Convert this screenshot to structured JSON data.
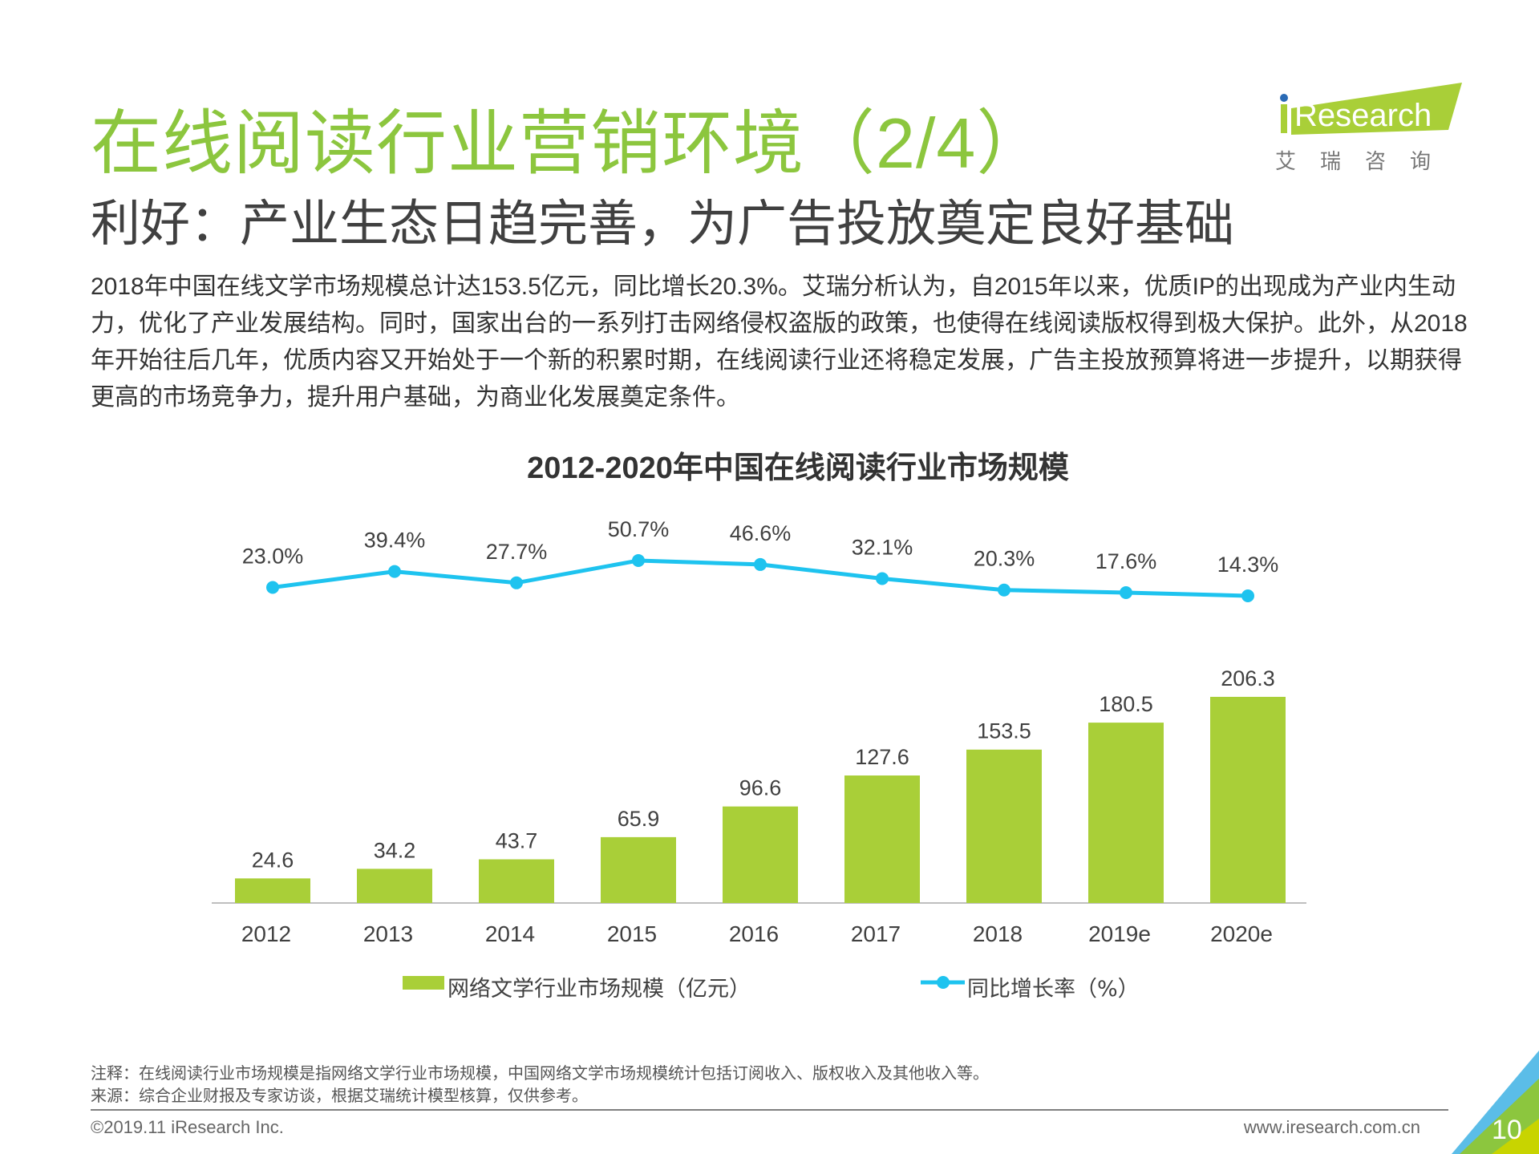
{
  "header": {
    "title": "在线阅读行业营销环境（2/4）",
    "subtitle": "利好：产业生态日趋完善，为广告投放奠定良好基础",
    "logo_text": "iResearch",
    "logo_cn": "艾 瑞 咨 询"
  },
  "body_text": "2018年中国在线文学市场规模总计达153.5亿元，同比增长20.3%。艾瑞分析认为，自2015年以来，优质IP的出现成为产业内生动力，优化了产业发展结构。同时，国家出台的一系列打击网络侵权盗版的政策，也使得在线阅读版权得到极大保护。此外，从2018年开始往后几年，优质内容又开始处于一个新的积累时期，在线阅读行业还将稳定发展，广告主投放预算将进一步提升，以期获得更高的市场竞争力，提升用户基础，为商业化发展奠定条件。",
  "chart_data": {
    "type": "bar+line",
    "title": "2012-2020年中国在线阅读行业市场规模",
    "categories": [
      "2012",
      "2013",
      "2014",
      "2015",
      "2016",
      "2017",
      "2018",
      "2019e",
      "2020e"
    ],
    "series": [
      {
        "name": "网络文学行业市场规模（亿元）",
        "type": "bar",
        "color": "#a9cf38",
        "values": [
          24.6,
          34.2,
          43.7,
          65.9,
          96.6,
          127.6,
          153.5,
          180.5,
          206.3
        ]
      },
      {
        "name": "同比增长率（%）",
        "type": "line",
        "color": "#1ec3ef",
        "values": [
          23.0,
          39.4,
          27.7,
          50.7,
          46.6,
          32.1,
          20.3,
          17.6,
          14.3
        ],
        "labels": [
          "23.0%",
          "39.4%",
          "27.7%",
          "50.7%",
          "46.6%",
          "32.1%",
          "20.3%",
          "17.6%",
          "14.3%"
        ]
      }
    ],
    "legend": "bottom"
  },
  "footer": {
    "note": "注释：在线阅读行业市场规模是指网络文学行业市场规模，中国网络文学市场规模统计包括订阅收入、版权收入及其他收入等。",
    "source": "来源：综合企业财报及专家访谈，根据艾瑞统计模型核算，仅供参考。",
    "copyright": "©2019.11 iResearch Inc.",
    "website": "www.iresearch.com.cn",
    "page": "10"
  }
}
